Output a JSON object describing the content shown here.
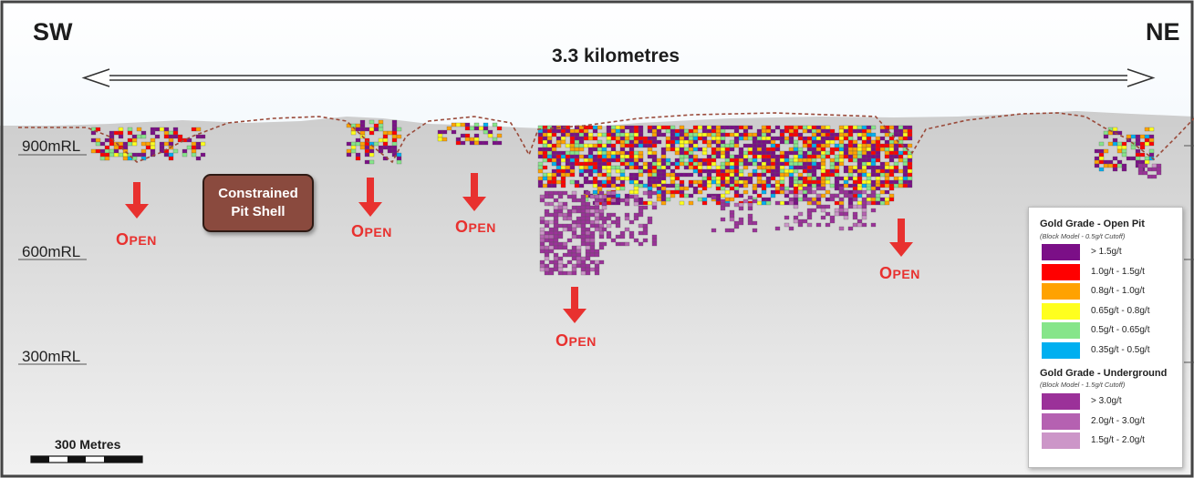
{
  "header": {
    "left_direction": "SW",
    "right_direction": "NE",
    "span_label": "3.3 kilometres"
  },
  "rl_labels": [
    "900mRL",
    "600mRL",
    "300mRL"
  ],
  "pit_shell_label": {
    "line1": "Constrained",
    "line2": "Pit Shell"
  },
  "open_label": {
    "first": "O",
    "rest": "PEN"
  },
  "scale_bar": {
    "label": "300 Metres"
  },
  "legend": {
    "open_pit_title": "Gold Grade - Open Pit",
    "open_pit_subtitle": "(Block Model - 0.5g/t Cutoff)",
    "open_pit_items": [
      {
        "label": "> 1.5g/t",
        "color": "#7b0f87"
      },
      {
        "label": "1.0g/t - 1.5g/t",
        "color": "#ff0000"
      },
      {
        "label": "0.8g/t - 1.0g/t",
        "color": "#ffa200"
      },
      {
        "label": "0.65g/t - 0.8g/t",
        "color": "#ffff1e"
      },
      {
        "label": "0.5g/t - 0.65g/t",
        "color": "#86e58a"
      },
      {
        "label": "0.35g/t - 0.5g/t",
        "color": "#00aff0"
      }
    ],
    "underground_title": "Gold Grade - Underground",
    "underground_subtitle": "(Block Model - 1.5g/t Cutoff)",
    "underground_items": [
      {
        "label": "> 3.0g/t",
        "color": "#9b3199"
      },
      {
        "label": "2.0g/t - 3.0g/t",
        "color": "#b561b1"
      },
      {
        "label": "1.5g/t - 2.0g/t",
        "color": "#cc96c8"
      }
    ]
  },
  "colors": {
    "sky": "#dcecf8",
    "ground": "#d3d3d3",
    "open_arrow": "#e8312f",
    "pit_shell_line": "#9a4a3a",
    "pit_box": "#8a4a3e"
  }
}
